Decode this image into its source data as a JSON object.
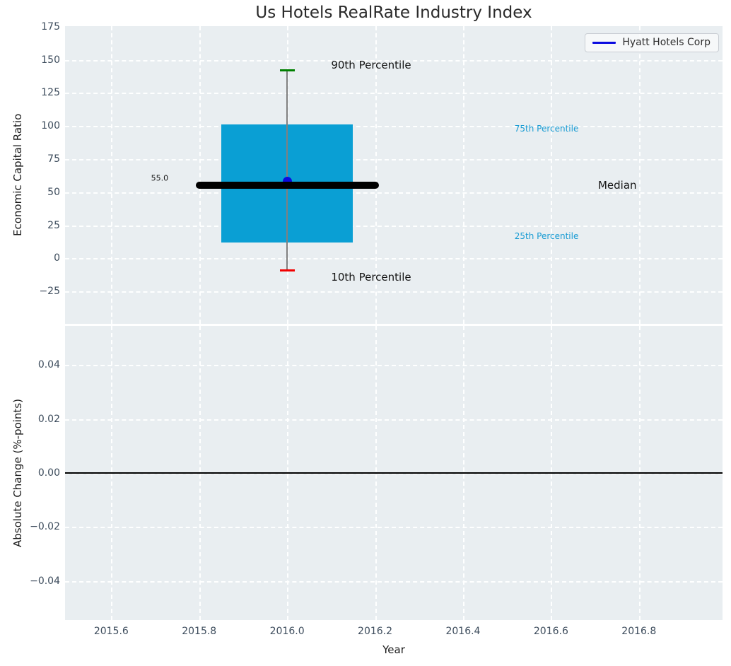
{
  "title": "Us Hotels RealRate Industry Index",
  "chart_data": [
    {
      "id": "industry-index",
      "type": "boxplot",
      "title": "Us Hotels RealRate Industry Index",
      "ylabel": "Economic Capital Ratio",
      "xlim": [
        2015.495,
        2016.99
      ],
      "ylim": [
        -49.5,
        175.5
      ],
      "grid": "white dashed",
      "x_ticks": [
        {
          "v": 2015.6,
          "label": "2015.6"
        },
        {
          "v": 2015.8,
          "label": "2015.8"
        },
        {
          "v": 2016.0,
          "label": "2016.0"
        },
        {
          "v": 2016.2,
          "label": "2016.2"
        },
        {
          "v": 2016.4,
          "label": "2016.4"
        },
        {
          "v": 2016.6,
          "label": "2016.6"
        },
        {
          "v": 2016.8,
          "label": "2016.8"
        }
      ],
      "y_ticks": [
        {
          "v": 175,
          "label": "175"
        },
        {
          "v": 150,
          "label": "150"
        },
        {
          "v": 125,
          "label": "125"
        },
        {
          "v": 100,
          "label": "100"
        },
        {
          "v": 75,
          "label": "75"
        },
        {
          "v": 50,
          "label": "50"
        },
        {
          "v": 25,
          "label": "25"
        },
        {
          "v": 0,
          "label": "0"
        },
        {
          "v": -25,
          "label": "−25"
        }
      ],
      "box": {
        "x": 2016.0,
        "p10": -9,
        "p25": 12,
        "median": 55,
        "p75": 101,
        "p90": 142,
        "median_label": "55.0",
        "box_x_range": [
          2015.85,
          2016.15
        ],
        "median_x_range": [
          2015.8,
          2016.2
        ],
        "cap_x_range": [
          2015.983,
          2016.017
        ]
      },
      "point": {
        "name": "Hyatt Hotels Corp",
        "x": 2016.0,
        "y": 58
      },
      "legend": {
        "position": "upper right",
        "entries": [
          {
            "label": "Hyatt Hotels Corp",
            "color": "#0b0be0"
          }
        ]
      },
      "annotations": [
        {
          "name": "label-90th-percentile",
          "text": "90th Percentile",
          "x": 2016.1,
          "y": 146,
          "color": "#141414",
          "size": 15,
          "align": "left"
        },
        {
          "name": "label-10th-percentile",
          "text": "10th Percentile",
          "x": 2016.1,
          "y": -14,
          "color": "#141414",
          "size": 15,
          "align": "left"
        },
        {
          "name": "label-75th-percentile",
          "text": "75th Percentile",
          "x": 2016.517,
          "y": 98,
          "color": "#189bd3",
          "size": 12,
          "align": "left"
        },
        {
          "name": "label-25th-percentile",
          "text": "25th Percentile",
          "x": 2016.517,
          "y": 17,
          "color": "#189bd3",
          "size": 12,
          "align": "left"
        },
        {
          "name": "label-median",
          "text": "Median",
          "x": 2016.707,
          "y": 55,
          "color": "#141414",
          "size": 15,
          "align": "left"
        },
        {
          "name": "label-median-value",
          "text": "55.0",
          "x": 2015.73,
          "y": 60.5,
          "color": "#141414",
          "size": 11,
          "align": "right"
        }
      ],
      "colors": {
        "box_fill": "#0a9fd4",
        "whisker": "#808080",
        "cap_top": "#008000",
        "cap_bottom": "#f20000",
        "median_line": "#000000",
        "point": "#0b0be0",
        "axes_background": "#e9eef1",
        "grid": "#ffffff"
      }
    },
    {
      "id": "absolute-change",
      "type": "line",
      "ylabel": "Absolute Change (%-points)",
      "xlabel": "Year",
      "xlim": [
        2015.495,
        2016.99
      ],
      "ylim": [
        -0.0545,
        0.0545
      ],
      "grid": "white dashed",
      "x_ticks": [
        {
          "v": 2015.6,
          "label": "2015.6"
        },
        {
          "v": 2015.8,
          "label": "2015.8"
        },
        {
          "v": 2016.0,
          "label": "2016.0"
        },
        {
          "v": 2016.2,
          "label": "2016.2"
        },
        {
          "v": 2016.4,
          "label": "2016.4"
        },
        {
          "v": 2016.6,
          "label": "2016.6"
        },
        {
          "v": 2016.8,
          "label": "2016.8"
        }
      ],
      "y_ticks": [
        {
          "v": 0.04,
          "label": "0.04"
        },
        {
          "v": 0.02,
          "label": "0.02"
        },
        {
          "v": 0.0,
          "label": "0.00"
        },
        {
          "v": -0.02,
          "label": "−0.02"
        },
        {
          "v": -0.04,
          "label": "−0.04"
        }
      ],
      "zero_line": {
        "y": 0,
        "color": "#000000"
      }
    }
  ]
}
